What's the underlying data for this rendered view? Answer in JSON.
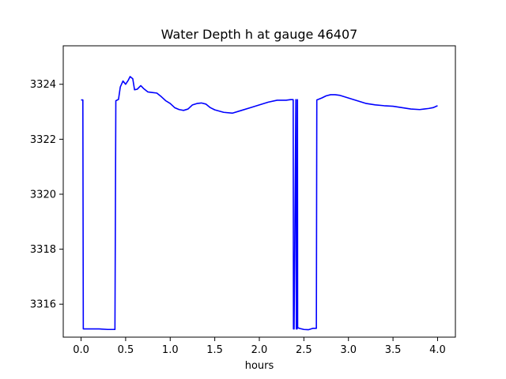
{
  "chart_data": {
    "type": "line",
    "title": "Water Depth h at gauge 46407",
    "xlabel": "hours",
    "ylabel": "",
    "xlim": [
      -0.2,
      4.2
    ],
    "ylim": [
      3314.8,
      3325.4
    ],
    "xticks": [
      0.0,
      0.5,
      1.0,
      1.5,
      2.0,
      2.5,
      3.0,
      3.5,
      4.0
    ],
    "xtick_labels": [
      "0.0",
      "0.5",
      "1.0",
      "1.5",
      "2.0",
      "2.5",
      "3.0",
      "3.5",
      "4.0"
    ],
    "yticks": [
      3316,
      3318,
      3320,
      3322,
      3324
    ],
    "ytick_labels": [
      "3316",
      "3318",
      "3320",
      "3322",
      "3324"
    ],
    "grid": false,
    "line_color": "#0000ff",
    "series": [
      {
        "x": [
          0.0,
          0.02,
          0.025,
          0.1,
          0.2,
          0.3,
          0.38,
          0.39,
          0.42,
          0.44,
          0.47,
          0.5,
          0.53,
          0.55,
          0.58,
          0.6,
          0.63,
          0.67,
          0.7,
          0.75,
          0.8,
          0.85,
          0.9,
          0.95,
          1.0,
          1.05,
          1.1,
          1.15,
          1.2,
          1.25,
          1.3,
          1.35,
          1.4,
          1.45,
          1.5,
          1.6,
          1.7,
          1.8,
          1.9,
          2.0,
          2.1,
          2.2,
          2.3,
          2.35,
          2.38,
          2.383,
          2.39,
          2.41,
          2.412,
          2.415,
          2.425,
          2.428,
          2.43,
          2.45,
          2.5,
          2.55,
          2.6,
          2.64,
          2.645,
          2.7,
          2.75,
          2.8,
          2.85,
          2.9,
          3.0,
          3.1,
          3.2,
          3.3,
          3.4,
          3.5,
          3.6,
          3.7,
          3.8,
          3.85,
          3.9,
          3.95,
          4.0
        ],
        "y": [
          3323.43,
          3323.43,
          3315.1,
          3315.1,
          3315.1,
          3315.08,
          3315.08,
          3323.4,
          3323.45,
          3323.9,
          3324.12,
          3324.0,
          3324.15,
          3324.28,
          3324.2,
          3323.8,
          3323.82,
          3323.95,
          3323.85,
          3323.72,
          3323.7,
          3323.68,
          3323.55,
          3323.4,
          3323.3,
          3323.15,
          3323.08,
          3323.05,
          3323.1,
          3323.25,
          3323.3,
          3323.32,
          3323.28,
          3323.15,
          3323.07,
          3322.98,
          3322.95,
          3323.05,
          3323.15,
          3323.25,
          3323.35,
          3323.42,
          3323.42,
          3323.44,
          3323.44,
          3315.1,
          3315.1,
          3323.44,
          3323.44,
          3315.1,
          3315.1,
          3323.44,
          3315.15,
          3315.12,
          3315.08,
          3315.07,
          3315.12,
          3315.12,
          3323.43,
          3323.5,
          3323.58,
          3323.62,
          3323.62,
          3323.6,
          3323.5,
          3323.4,
          3323.3,
          3323.25,
          3323.22,
          3323.2,
          3323.15,
          3323.1,
          3323.08,
          3323.1,
          3323.12,
          3323.15,
          3323.22
        ]
      }
    ]
  }
}
